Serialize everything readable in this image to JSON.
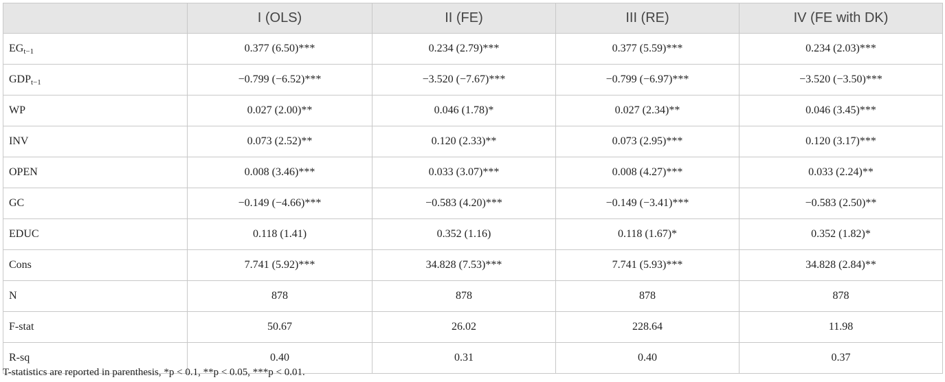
{
  "table": {
    "columns": [
      "I (OLS)",
      "II (FE)",
      "III (RE)",
      "IV (FE with DK)"
    ],
    "rows": [
      {
        "label": "EG",
        "sub": "t−1",
        "cells": [
          "0.377 (6.50)***",
          "0.234 (2.79)***",
          "0.377 (5.59)***",
          "0.234 (2.03)***"
        ]
      },
      {
        "label": "GDP",
        "sub": "t−1",
        "cells": [
          "−0.799 (−6.52)***",
          "−3.520 (−7.67)***",
          "−0.799 (−6.97)***",
          "−3.520 (−3.50)***"
        ]
      },
      {
        "label": "WP",
        "cells": [
          "0.027 (2.00)**",
          "0.046 (1.78)*",
          "0.027 (2.34)**",
          "0.046 (3.45)***"
        ]
      },
      {
        "label": "INV",
        "cells": [
          "0.073 (2.52)**",
          "0.120 (2.33)**",
          "0.073 (2.95)***",
          "0.120 (3.17)***"
        ]
      },
      {
        "label": "OPEN",
        "cells": [
          "0.008 (3.46)***",
          "0.033 (3.07)***",
          "0.008 (4.27)***",
          "0.033 (2.24)**"
        ]
      },
      {
        "label": "GC",
        "cells": [
          "−0.149 (−4.66)***",
          "−0.583 (4.20)***",
          "−0.149 (−3.41)***",
          "−0.583 (2.50)**"
        ]
      },
      {
        "label": "EDUC",
        "cells": [
          "0.118 (1.41)",
          "0.352 (1.16)",
          "0.118 (1.67)*",
          "0.352 (1.82)*"
        ]
      },
      {
        "label": "Cons",
        "cells": [
          "7.741 (5.92)***",
          "34.828 (7.53)***",
          "7.741 (5.93)***",
          "34.828 (2.84)**"
        ]
      },
      {
        "label": "N",
        "cells": [
          "878",
          "878",
          "878",
          "878"
        ]
      },
      {
        "label": "F-stat",
        "cells": [
          "50.67",
          "26.02",
          "228.64",
          "11.98"
        ]
      },
      {
        "label": "R-sq",
        "cells": [
          "0.40",
          "0.31",
          "0.40",
          "0.37"
        ]
      }
    ]
  },
  "footnote": "T-statistics are reported in parenthesis, *p < 0.1, **p < 0.05, ***p < 0.01."
}
